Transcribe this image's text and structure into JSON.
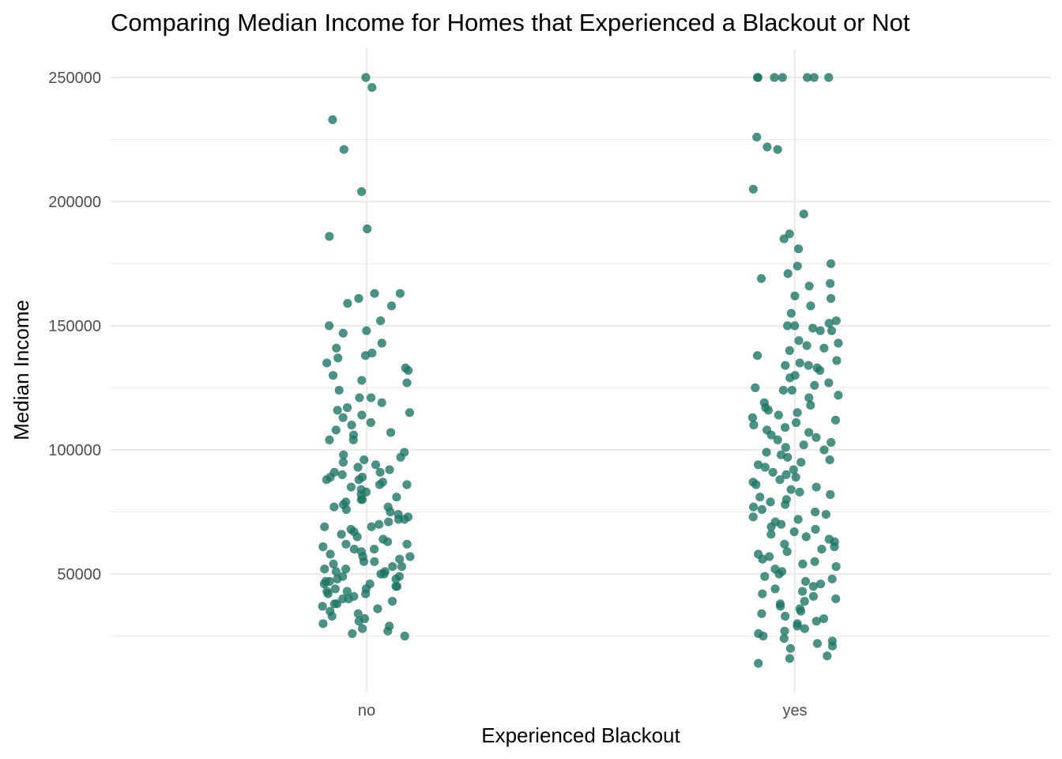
{
  "chart_data": {
    "type": "scatter",
    "jitter": true,
    "title": "Comparing Median Income for Homes that Experienced a Blackout or Not",
    "xlabel": "Experienced Blackout",
    "ylabel": "Median Income",
    "categories": [
      "no",
      "yes"
    ],
    "ylim": [
      10000,
      262000
    ],
    "y_ticks": [
      50000,
      100000,
      150000,
      200000,
      250000
    ],
    "y_tick_labels": [
      "50000",
      "100000",
      "150000",
      "200000",
      "250000"
    ],
    "grid": true,
    "legend": "none",
    "point_color": "#1f7564",
    "point_opacity": 0.8,
    "series": [
      {
        "category": "no",
        "values": [
          250000,
          246000,
          233000,
          221000,
          204000,
          189000,
          186000,
          163000,
          163000,
          161000,
          159000,
          158000,
          152000,
          150000,
          148000,
          147000,
          143000,
          141000,
          139000,
          138000,
          137000,
          135000,
          133000,
          132000,
          130000,
          128000,
          127000,
          124000,
          121000,
          121000,
          119000,
          117000,
          116000,
          115000,
          114000,
          113000,
          111000,
          110000,
          108000,
          107000,
          106000,
          104000,
          104000,
          99000,
          98000,
          97000,
          96000,
          95000,
          94000,
          93000,
          92000,
          91000,
          91000,
          90000,
          89000,
          89000,
          88000,
          88000,
          87000,
          86000,
          86000,
          85000,
          84000,
          83000,
          82000,
          81000,
          80000,
          80000,
          79000,
          78000,
          77000,
          77000,
          76000,
          75000,
          74000,
          73000,
          72000,
          72000,
          71000,
          70000,
          69000,
          69000,
          68000,
          67000,
          66000,
          65000,
          64000,
          63000,
          62000,
          62000,
          61000,
          60000,
          60000,
          59000,
          58000,
          57000,
          57000,
          56000,
          55000,
          55000,
          54000,
          53000,
          53000,
          52000,
          52000,
          51000,
          51000,
          50000,
          50000,
          49000,
          49000,
          48000,
          48000,
          47000,
          47000,
          46000,
          46000,
          45000,
          45000,
          44000,
          44000,
          43000,
          43000,
          42000,
          42000,
          41000,
          40000,
          40000,
          39000,
          38000,
          38000,
          37000,
          36000,
          35000,
          34000,
          33000,
          32000,
          31000,
          30000,
          29000,
          28000,
          27000,
          26000,
          25000
        ]
      },
      {
        "category": "yes",
        "values": [
          250000,
          250000,
          250000,
          250000,
          250000,
          250000,
          250000,
          226000,
          222000,
          221000,
          205000,
          195000,
          187000,
          185000,
          181000,
          175000,
          174000,
          171000,
          169000,
          167000,
          166000,
          162000,
          161000,
          158000,
          155000,
          152000,
          151000,
          150000,
          150000,
          149000,
          148000,
          148000,
          144000,
          143000,
          142000,
          141000,
          140000,
          138000,
          136000,
          135000,
          134000,
          134000,
          133000,
          132000,
          130000,
          129000,
          127000,
          126000,
          125000,
          124000,
          124000,
          122000,
          121000,
          119000,
          118000,
          117000,
          116000,
          115000,
          114000,
          113000,
          112000,
          111000,
          110000,
          109000,
          108000,
          107000,
          106000,
          105000,
          104000,
          103000,
          102000,
          101000,
          100000,
          99000,
          98000,
          97000,
          96000,
          95000,
          94000,
          93000,
          92000,
          91000,
          90000,
          89000,
          88000,
          87000,
          86000,
          85000,
          84000,
          83000,
          82000,
          81000,
          80000,
          79000,
          78000,
          77000,
          76000,
          75000,
          74000,
          73000,
          72000,
          71000,
          70000,
          69000,
          68000,
          67000,
          66000,
          65000,
          64000,
          63000,
          62000,
          61000,
          60000,
          59000,
          58000,
          57000,
          56000,
          55000,
          54000,
          53000,
          52000,
          51000,
          50000,
          49000,
          48000,
          47000,
          46000,
          45000,
          44000,
          43000,
          42000,
          41000,
          40000,
          39000,
          38000,
          37000,
          36000,
          35000,
          34000,
          33000,
          32000,
          31000,
          30000,
          29000,
          28000,
          27000,
          26000,
          25000,
          24000,
          23000,
          22000,
          21000,
          20000,
          17000,
          16000,
          14000
        ]
      }
    ]
  }
}
